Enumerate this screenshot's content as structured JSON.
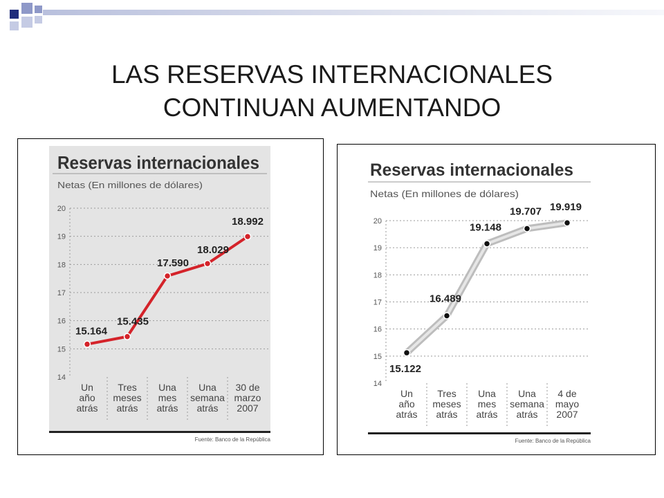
{
  "slide": {
    "title_lines": [
      "LAS RESERVAS INTERNACIONALES",
      "CONTINUAN AUMENTANDO"
    ],
    "accent_colors": [
      "#1f2d7c",
      "#8e98c8",
      "#c5cbe4"
    ]
  },
  "chart_data": [
    {
      "type": "line",
      "title": "Reservas internacionales",
      "subtitle": "Netas (En millones de dólares)",
      "categories": [
        [
          "Un",
          "año",
          "atrás"
        ],
        [
          "Tres",
          "meses",
          "atrás"
        ],
        [
          "Una",
          "mes",
          "atrás"
        ],
        [
          "Una",
          "semana",
          "atrás"
        ],
        [
          "30 de",
          "marzo",
          "2007"
        ]
      ],
      "series": [
        {
          "values": [
            15.164,
            15.435,
            17.59,
            18.029,
            18.992
          ]
        }
      ],
      "data_labels": [
        "15.164",
        "15.435",
        "17.590",
        "18.029",
        "18.992"
      ],
      "y_ticks": [
        "14",
        "15",
        "16",
        "17",
        "18",
        "19",
        "20"
      ],
      "ylim": [
        14,
        20
      ],
      "source": "Fuente: Banco de la República",
      "line_color": "#d4232a",
      "background": "#e4e4e4",
      "grid": true
    },
    {
      "type": "line",
      "title": "Reservas internacionales",
      "subtitle": "Netas (En millones de dólares)",
      "categories": [
        [
          "Un",
          "año",
          "atrás"
        ],
        [
          "Tres",
          "meses",
          "atrás"
        ],
        [
          "Una",
          "mes",
          "atrás"
        ],
        [
          "Una",
          "semana",
          "atrás"
        ],
        [
          "4 de",
          "mayo",
          "2007"
        ]
      ],
      "series": [
        {
          "values": [
            15.122,
            16.489,
            19.148,
            19.707,
            19.919
          ]
        }
      ],
      "data_labels": [
        "15.122",
        "16.489",
        "19.148",
        "19.707",
        "19.919"
      ],
      "y_ticks": [
        "14",
        "15",
        "16",
        "17",
        "18",
        "19",
        "20"
      ],
      "ylim": [
        14,
        20
      ],
      "source": "Fuente: Banco de la República",
      "line_color": "#e6e6e6",
      "background": "#ffffff",
      "grid": true
    }
  ]
}
